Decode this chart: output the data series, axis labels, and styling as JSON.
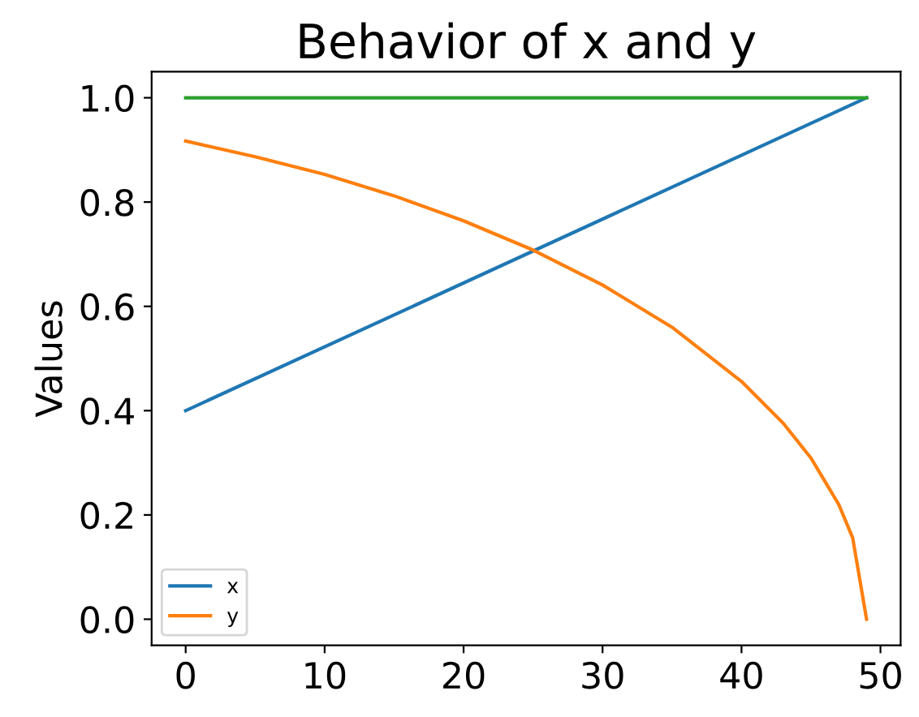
{
  "chart_data": {
    "type": "line",
    "title": "Behavior of x and y",
    "ylabel": "Values",
    "xlim": [
      -2.45,
      51.45
    ],
    "xticks": [
      0,
      10,
      20,
      30,
      40,
      50
    ],
    "ylim": [
      -0.05,
      1.05
    ],
    "yticks": [
      {
        "value": 0,
        "label": "0.0"
      },
      {
        "value": 0.2,
        "label": "0.2"
      },
      {
        "value": 0.4,
        "label": "0.4"
      },
      {
        "value": 0.6,
        "label": "0.6"
      },
      {
        "value": 0.8,
        "label": "0.8"
      },
      {
        "value": 1,
        "label": "1.0"
      }
    ],
    "grid": false,
    "legend": "bottom left",
    "marker": "none",
    "line_style": "solid",
    "series": [
      {
        "name": "x",
        "color": "#1f77b4",
        "x": [
          0,
          49
        ],
        "values": [
          0.4,
          1.0
        ]
      },
      {
        "name": "y",
        "color": "#ff7f0e",
        "x": [
          0,
          5,
          10,
          15,
          20,
          25,
          30,
          35,
          40,
          43,
          45,
          47,
          48,
          49
        ],
        "values": [
          0.917,
          0.887,
          0.853,
          0.812,
          0.764,
          0.708,
          0.641,
          0.56,
          0.456,
          0.376,
          0.309,
          0.22,
          0.156,
          0.0
        ]
      },
      {
        "color": "#2ca02c",
        "x": [
          0,
          49
        ],
        "values": [
          1.0,
          1.0
        ]
      }
    ]
  }
}
